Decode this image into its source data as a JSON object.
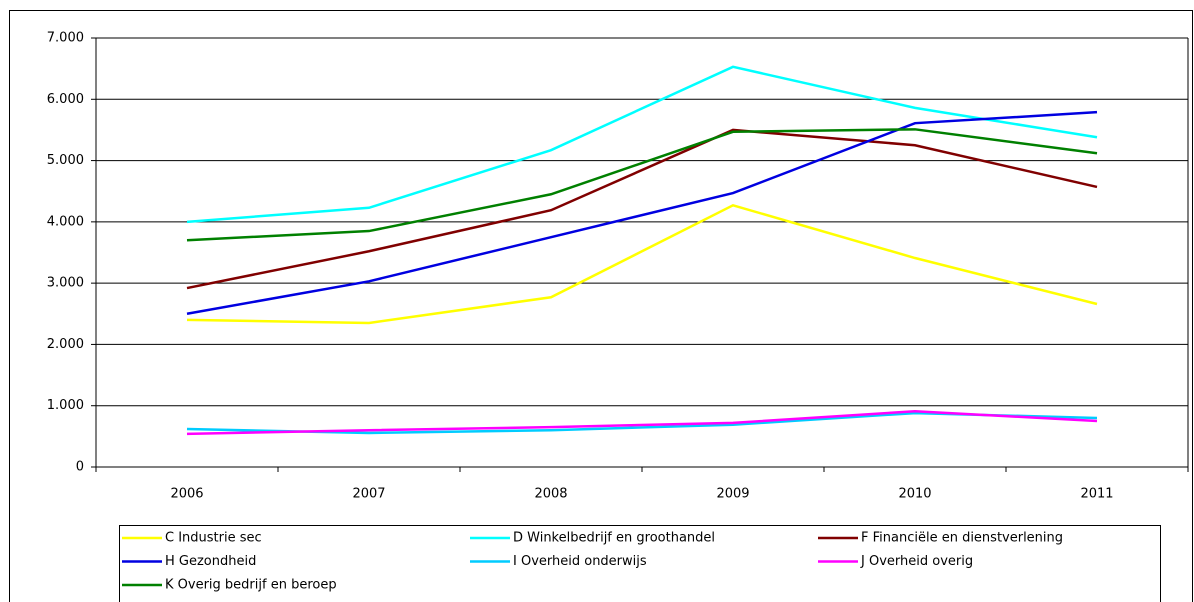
{
  "chart_data": {
    "type": "line",
    "categories": [
      "2006",
      "2007",
      "2008",
      "2009",
      "2010",
      "2011"
    ],
    "series": [
      {
        "name": "C Industrie sec",
        "color": "#ffff00",
        "values": [
          2400,
          2350,
          2770,
          4270,
          3410,
          2660
        ]
      },
      {
        "name": "D Winkelbedrijf en groothandel",
        "color": "#00ffff",
        "values": [
          4000,
          4230,
          5170,
          6530,
          5860,
          5380
        ]
      },
      {
        "name": "F Financiële en dienstverlening",
        "color": "#800000",
        "values": [
          2920,
          3520,
          4190,
          5500,
          5250,
          4570
        ]
      },
      {
        "name": "H Gezondheid",
        "color": "#0000e0",
        "values": [
          2500,
          3030,
          3750,
          4470,
          5610,
          5790
        ]
      },
      {
        "name": "I Overheid onderwijs",
        "color": "#00ccff",
        "values": [
          620,
          555,
          600,
          690,
          880,
          800
        ]
      },
      {
        "name": "J Overheid overig",
        "color": "#ff00ff",
        "values": [
          540,
          600,
          650,
          720,
          910,
          750
        ]
      },
      {
        "name": "K Overig bedrijf en beroep",
        "color": "#008000",
        "values": [
          3700,
          3850,
          4450,
          5470,
          5510,
          5120
        ]
      }
    ],
    "ylim": [
      0,
      7000
    ],
    "yticks": [
      0,
      {
        "value": 1000,
        "label": "1.000"
      },
      {
        "value": 2000,
        "label": "2.000"
      },
      {
        "value": 3000,
        "label": "3.000"
      },
      {
        "value": 4000,
        "label": "4.000"
      },
      {
        "value": 5000,
        "label": "5.000"
      },
      {
        "value": 6000,
        "label": "6.000"
      },
      {
        "value": 7000,
        "label": "7.000"
      }
    ],
    "grid": true
  }
}
